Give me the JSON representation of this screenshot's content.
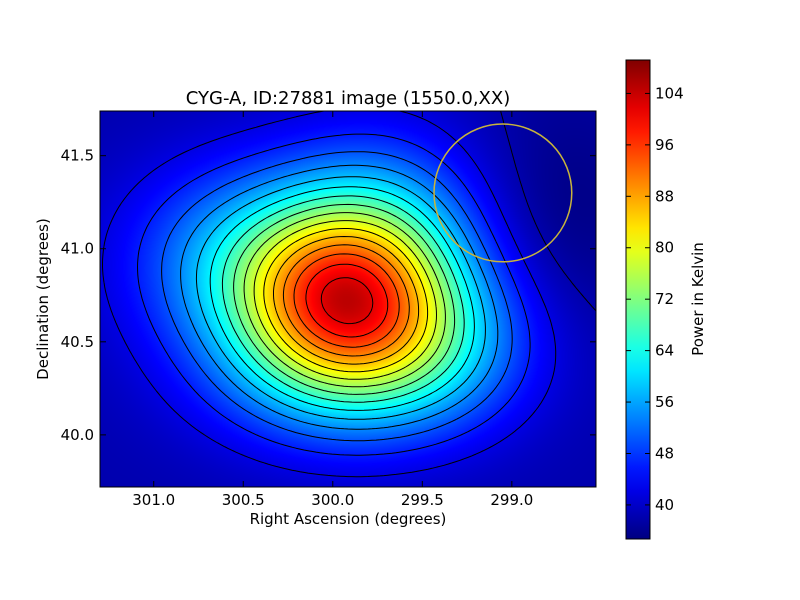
{
  "chart_data": {
    "type": "heatmap",
    "title": "CYG-A, ID:27881 image (1550.0,XX)",
    "xlabel": "Right Ascension (degrees)",
    "ylabel": "Declination (degrees)",
    "xlim": [
      301.3,
      298.53
    ],
    "ylim": [
      39.72,
      41.74
    ],
    "x_inverted": true,
    "x_ticks": [
      301.0,
      300.5,
      300.0,
      299.5,
      299.0
    ],
    "x_tick_labels": [
      "301.0",
      "300.5",
      "300.0",
      "299.5",
      "299.0"
    ],
    "y_ticks": [
      40.0,
      40.5,
      41.0,
      41.5
    ],
    "y_tick_labels": [
      "40.0",
      "40.5",
      "41.0",
      "41.5"
    ],
    "colorbar": {
      "label": "Power in Kelvin",
      "range": [
        34.7,
        109.2
      ],
      "ticks": [
        40,
        48,
        56,
        64,
        72,
        80,
        88,
        96,
        104
      ],
      "tick_labels": [
        "40",
        "48",
        "56",
        "64",
        "72",
        "80",
        "88",
        "96",
        "104"
      ],
      "colormap": "jet"
    },
    "contour_levels": [
      38,
      42,
      46,
      50,
      54,
      58,
      62,
      66,
      70,
      74,
      78,
      82,
      86,
      90,
      94,
      98,
      102,
      106
    ],
    "peak": {
      "ra": 299.95,
      "dec": 40.72,
      "value": 109
    },
    "background_value": 36,
    "circle_marker": {
      "center_ra": 299.05,
      "center_dec": 41.3,
      "radius_deg": 0.37,
      "color": "#c8b43c"
    },
    "grid": false,
    "legend": "none"
  }
}
